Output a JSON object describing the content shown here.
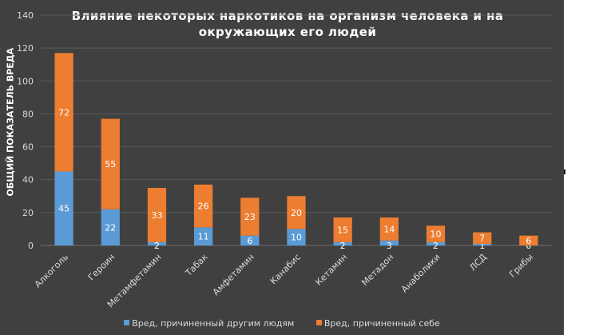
{
  "colors": {
    "background": "#404040",
    "gridline": "#5a5a5a",
    "axis_text": "#d9d9d9",
    "others": "#5b9bd5",
    "self": "#ed7d31"
  },
  "chart_data": {
    "type": "bar",
    "stacked": true,
    "title_lines": [
      "Влияние некоторых наркотиков на организм человека и на",
      "окружающих его людей"
    ],
    "xlabel": "",
    "ylabel": "ОБЩИЙ ПОКАЗАТЕЛЬ ВРЕДА",
    "ylim": [
      0,
      140
    ],
    "yticks": [
      "0",
      "20",
      "40",
      "60",
      "80",
      "100",
      "120",
      "140"
    ],
    "grid": true,
    "legend_position": "bottom",
    "categories": [
      "Алкоголь",
      "Героин",
      "Метамфетамин",
      "Табак",
      "Амфетамин",
      "Канабис",
      "Кетамин",
      "Метадон",
      "Анаболики",
      "ЛСД",
      "Грибы"
    ],
    "series": [
      {
        "name": "Вред, причиненный другим людям",
        "color": "#5b9bd5",
        "values": [
          45,
          22,
          2,
          11,
          6,
          10,
          2,
          3,
          2,
          1,
          0
        ]
      },
      {
        "name": "Вред, причиненный себе",
        "color": "#ed7d31",
        "values": [
          72,
          55,
          33,
          26,
          23,
          20,
          15,
          14,
          10,
          7,
          6
        ]
      }
    ]
  }
}
